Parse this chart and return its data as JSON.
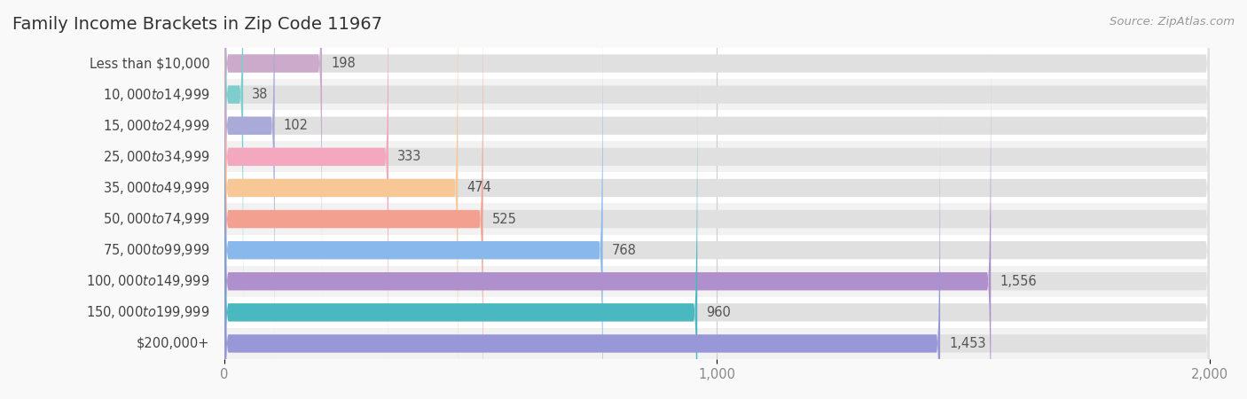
{
  "title": "Family Income Brackets in Zip Code 11967",
  "source": "Source: ZipAtlas.com",
  "categories": [
    "Less than $10,000",
    "$10,000 to $14,999",
    "$15,000 to $24,999",
    "$25,000 to $34,999",
    "$35,000 to $49,999",
    "$50,000 to $74,999",
    "$75,000 to $99,999",
    "$100,000 to $149,999",
    "$150,000 to $199,999",
    "$200,000+"
  ],
  "values": [
    198,
    38,
    102,
    333,
    474,
    525,
    768,
    1556,
    960,
    1453
  ],
  "bar_colors": [
    "#cbaacb",
    "#7ecece",
    "#aaaad8",
    "#f4a8c0",
    "#f7c896",
    "#f4a090",
    "#88b8ec",
    "#b090cc",
    "#4ab8c0",
    "#9898d8"
  ],
  "row_colors": [
    "#ffffff",
    "#f2f2f2"
  ],
  "bar_bg_color": "#e0e0e0",
  "background_color": "#f9f9f9",
  "xlim": [
    0,
    2000
  ],
  "xticks": [
    0,
    1000,
    2000
  ],
  "bar_height": 0.58,
  "title_fontsize": 14,
  "label_fontsize": 10.5,
  "value_fontsize": 10.5,
  "source_fontsize": 9.5
}
